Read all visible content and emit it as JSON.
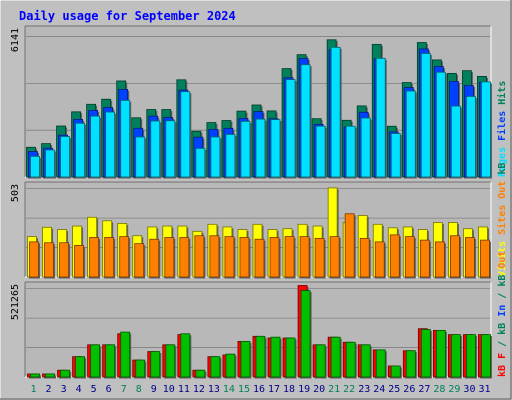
{
  "title": "Daily usage for September 2024",
  "colors": {
    "background": "#c0c0c0",
    "plot_bg": "#b8b8b8",
    "title": "#0000ff",
    "grid": "#808080",
    "hits": "#00805c",
    "files": "#0040ff",
    "pages": "#00e0ff",
    "visits": "#ffff00",
    "sites": "#ff8000",
    "kb_f": "#ff0000",
    "kb_in": "#00c000",
    "weekend_label": "#00805c",
    "weekday_label": "#00008b"
  },
  "chart_data": [
    {
      "type": "bar",
      "panel": "top",
      "max_label": "6141",
      "ylim": [
        0,
        6141
      ],
      "legend": [
        {
          "text": "Pages",
          "color": "#00e0ff"
        },
        {
          "text": "Files",
          "color": "#0040ff"
        },
        {
          "text": "Hits",
          "color": "#00805c"
        }
      ],
      "series": [
        {
          "name": "Hits",
          "values": [
            1300,
            1460,
            2230,
            2850,
            3180,
            3400,
            4200,
            2590,
            2950,
            2950,
            4250,
            2000,
            2380,
            2470,
            2880,
            3150,
            2890,
            4740,
            5350,
            2550,
            6000,
            2480,
            3110,
            5800,
            2220,
            4130,
            5880,
            5120,
            4530,
            4650,
            4400
          ]
        },
        {
          "name": "Files",
          "values": [
            1110,
            1260,
            1830,
            2520,
            2910,
            3040,
            3830,
            2130,
            2660,
            2600,
            3800,
            1740,
            2080,
            2130,
            2560,
            2860,
            2550,
            4340,
            5180,
            2300,
            5560,
            2180,
            2830,
            5160,
            1970,
            3910,
            5600,
            4830,
            4180,
            4000,
            4140
          ]
        },
        {
          "name": "Pages",
          "values": [
            900,
            1180,
            1770,
            2350,
            2660,
            2840,
            3350,
            1750,
            2450,
            2460,
            3730,
            1250,
            1750,
            1860,
            2430,
            2530,
            2510,
            4260,
            4910,
            2220,
            5670,
            2220,
            2580,
            5190,
            1900,
            3760,
            5400,
            4580,
            3100,
            3520,
            4160
          ]
        }
      ]
    },
    {
      "type": "bar",
      "panel": "middle",
      "max_label": "503",
      "ylim": [
        0,
        503
      ],
      "legend": [
        {
          "text": "Visits",
          "color": "#ffff00"
        },
        {
          "text": "Sites",
          "color": "#ff8000"
        },
        {
          "text": "Out",
          "color": "#ff8000"
        },
        {
          "text": "kB",
          "color": "#00805c"
        }
      ],
      "series": [
        {
          "name": "Visits",
          "values": [
            230,
            283,
            270,
            290,
            340,
            320,
            305,
            235,
            285,
            290,
            290,
            260,
            300,
            285,
            270,
            300,
            270,
            275,
            300,
            290,
            507,
            310,
            350,
            300,
            280,
            285,
            270,
            310,
            310,
            275,
            285
          ]
        },
        {
          "name": "Sites",
          "values": [
            200,
            195,
            195,
            180,
            225,
            225,
            230,
            190,
            215,
            225,
            225,
            235,
            235,
            230,
            225,
            215,
            225,
            230,
            230,
            220,
            230,
            360,
            220,
            200,
            240,
            230,
            210,
            200,
            235,
            225,
            210
          ]
        }
      ]
    },
    {
      "type": "bar",
      "panel": "bottom",
      "max_label": "521265",
      "ylim": [
        0,
        521265
      ],
      "legend": [
        {
          "text": "kB",
          "color": "#ff0000"
        },
        {
          "text": "F",
          "color": "#ff0000"
        },
        {
          "text": "/",
          "color": "#00805c"
        },
        {
          "text": "kB",
          "color": "#00805c"
        },
        {
          "text": "In",
          "color": "#0040ff"
        },
        {
          "text": "/",
          "color": "#00805c"
        },
        {
          "text": "kB",
          "color": "#00805c"
        },
        {
          "text": "Out",
          "color": "#ff8000"
        }
      ],
      "series": [
        {
          "name": "kB F",
          "values": [
            18000,
            18000,
            40000,
            120000,
            190000,
            190000,
            255000,
            100000,
            150000,
            190000,
            250000,
            40000,
            120000,
            130000,
            210000,
            240000,
            230000,
            230000,
            540000,
            190000,
            235000,
            205000,
            190000,
            160000,
            65000,
            155000,
            285000,
            275000,
            250000,
            250000,
            250000
          ]
        },
        {
          "name": "kB In",
          "values": [
            18000,
            18000,
            40000,
            120000,
            190000,
            190000,
            265000,
            100000,
            150000,
            190000,
            255000,
            40000,
            120000,
            135000,
            210000,
            240000,
            235000,
            230000,
            510000,
            190000,
            235000,
            205000,
            190000,
            160000,
            65000,
            155000,
            280000,
            275000,
            250000,
            250000,
            250000
          ]
        }
      ]
    }
  ],
  "days": [
    "1",
    "2",
    "3",
    "4",
    "5",
    "6",
    "7",
    "8",
    "9",
    "10",
    "11",
    "12",
    "13",
    "14",
    "15",
    "16",
    "17",
    "18",
    "19",
    "20",
    "21",
    "22",
    "23",
    "24",
    "25",
    "26",
    "27",
    "28",
    "29",
    "30",
    "31"
  ],
  "weekend_days": [
    "1",
    "7",
    "8",
    "14",
    "15",
    "21",
    "22",
    "28",
    "29"
  ]
}
